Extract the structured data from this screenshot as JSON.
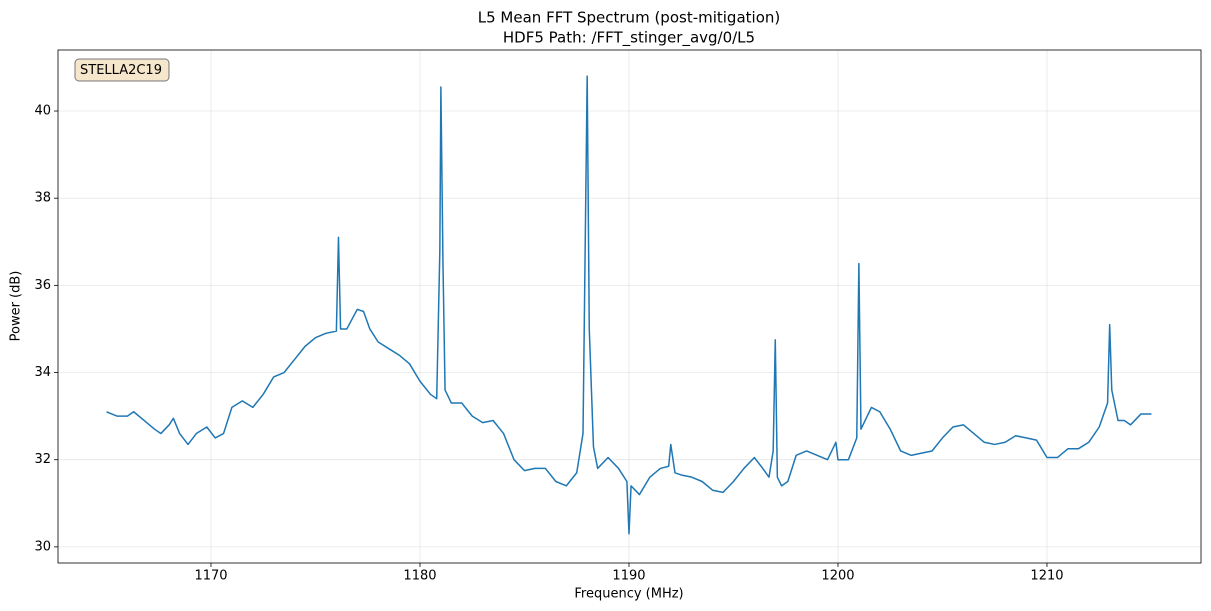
{
  "chart_data": {
    "type": "line",
    "title": "L5 Mean FFT Spectrum (post-mitigation)",
    "subtitle": "HDF5 Path: /FFT_stinger_avg/0/L5",
    "xlabel": "Frequency (MHz)",
    "ylabel": "Power (dB)",
    "annotation": "STELLA2C19",
    "color": "#1f77b4",
    "grid": true,
    "xlim": [
      1162.68,
      1217.37
    ],
    "ylim": [
      29.63,
      41.4
    ],
    "xticks": [
      1170,
      1180,
      1190,
      1200,
      1210
    ],
    "yticks": [
      30,
      32,
      34,
      36,
      38,
      40
    ],
    "x": [
      1165.0,
      1165.5,
      1166.0,
      1166.3,
      1166.8,
      1167.3,
      1167.6,
      1168.0,
      1168.2,
      1168.5,
      1168.9,
      1169.3,
      1169.8,
      1170.2,
      1170.6,
      1171.0,
      1171.5,
      1172.0,
      1172.5,
      1173.0,
      1173.5,
      1174.0,
      1174.5,
      1175.0,
      1175.5,
      1176.0,
      1176.1,
      1176.2,
      1176.5,
      1177.0,
      1177.3,
      1177.6,
      1178.0,
      1178.5,
      1179.0,
      1179.5,
      1180.0,
      1180.5,
      1180.8,
      1180.95,
      1181.0,
      1181.1,
      1181.2,
      1181.5,
      1182.0,
      1182.5,
      1183.0,
      1183.5,
      1184.0,
      1184.5,
      1185.0,
      1185.5,
      1186.0,
      1186.5,
      1187.0,
      1187.5,
      1187.8,
      1188.0,
      1188.1,
      1188.3,
      1188.5,
      1189.0,
      1189.5,
      1189.9,
      1190.0,
      1190.1,
      1190.5,
      1191.0,
      1191.5,
      1191.9,
      1192.0,
      1192.2,
      1192.5,
      1193.0,
      1193.5,
      1194.0,
      1194.5,
      1195.0,
      1195.5,
      1196.0,
      1196.4,
      1196.7,
      1196.9,
      1197.0,
      1197.1,
      1197.3,
      1197.6,
      1198.0,
      1198.5,
      1199.0,
      1199.5,
      1199.9,
      1200.0,
      1200.5,
      1200.9,
      1201.0,
      1201.1,
      1201.3,
      1201.6,
      1202.0,
      1202.5,
      1203.0,
      1203.5,
      1204.0,
      1204.5,
      1205.0,
      1205.5,
      1206.0,
      1206.5,
      1207.0,
      1207.5,
      1208.0,
      1208.5,
      1209.0,
      1209.5,
      1210.0,
      1210.5,
      1211.0,
      1211.5,
      1212.0,
      1212.5,
      1212.9,
      1213.0,
      1213.1,
      1213.4,
      1213.7,
      1214.0,
      1214.5,
      1215.0
    ],
    "values": [
      33.1,
      33.0,
      33.0,
      33.1,
      32.9,
      32.7,
      32.6,
      32.8,
      32.95,
      32.6,
      32.35,
      32.6,
      32.75,
      32.5,
      32.6,
      33.2,
      33.35,
      33.2,
      33.5,
      33.9,
      34.0,
      34.3,
      34.6,
      34.8,
      34.9,
      34.95,
      37.1,
      35.0,
      35.0,
      35.45,
      35.4,
      35.0,
      34.7,
      34.55,
      34.4,
      34.2,
      33.8,
      33.5,
      33.4,
      36.8,
      40.55,
      36.5,
      33.6,
      33.3,
      33.3,
      33.0,
      32.85,
      32.9,
      32.6,
      32.0,
      31.75,
      31.8,
      31.8,
      31.5,
      31.4,
      31.7,
      32.6,
      40.8,
      35.0,
      32.3,
      31.8,
      32.05,
      31.8,
      31.5,
      30.3,
      31.4,
      31.2,
      31.6,
      31.8,
      31.85,
      32.35,
      31.7,
      31.65,
      31.6,
      31.5,
      31.3,
      31.25,
      31.5,
      31.8,
      32.05,
      31.8,
      31.6,
      32.2,
      34.75,
      31.6,
      31.4,
      31.5,
      32.1,
      32.2,
      32.1,
      32.0,
      32.4,
      32.0,
      32.0,
      32.5,
      36.5,
      32.7,
      32.9,
      33.2,
      33.1,
      32.7,
      32.2,
      32.1,
      32.15,
      32.2,
      32.5,
      32.75,
      32.8,
      32.6,
      32.4,
      32.35,
      32.4,
      32.55,
      32.5,
      32.45,
      32.05,
      32.05,
      32.25,
      32.25,
      32.4,
      32.75,
      33.3,
      35.1,
      33.6,
      32.9,
      32.9,
      32.8,
      33.05,
      33.05
    ]
  }
}
